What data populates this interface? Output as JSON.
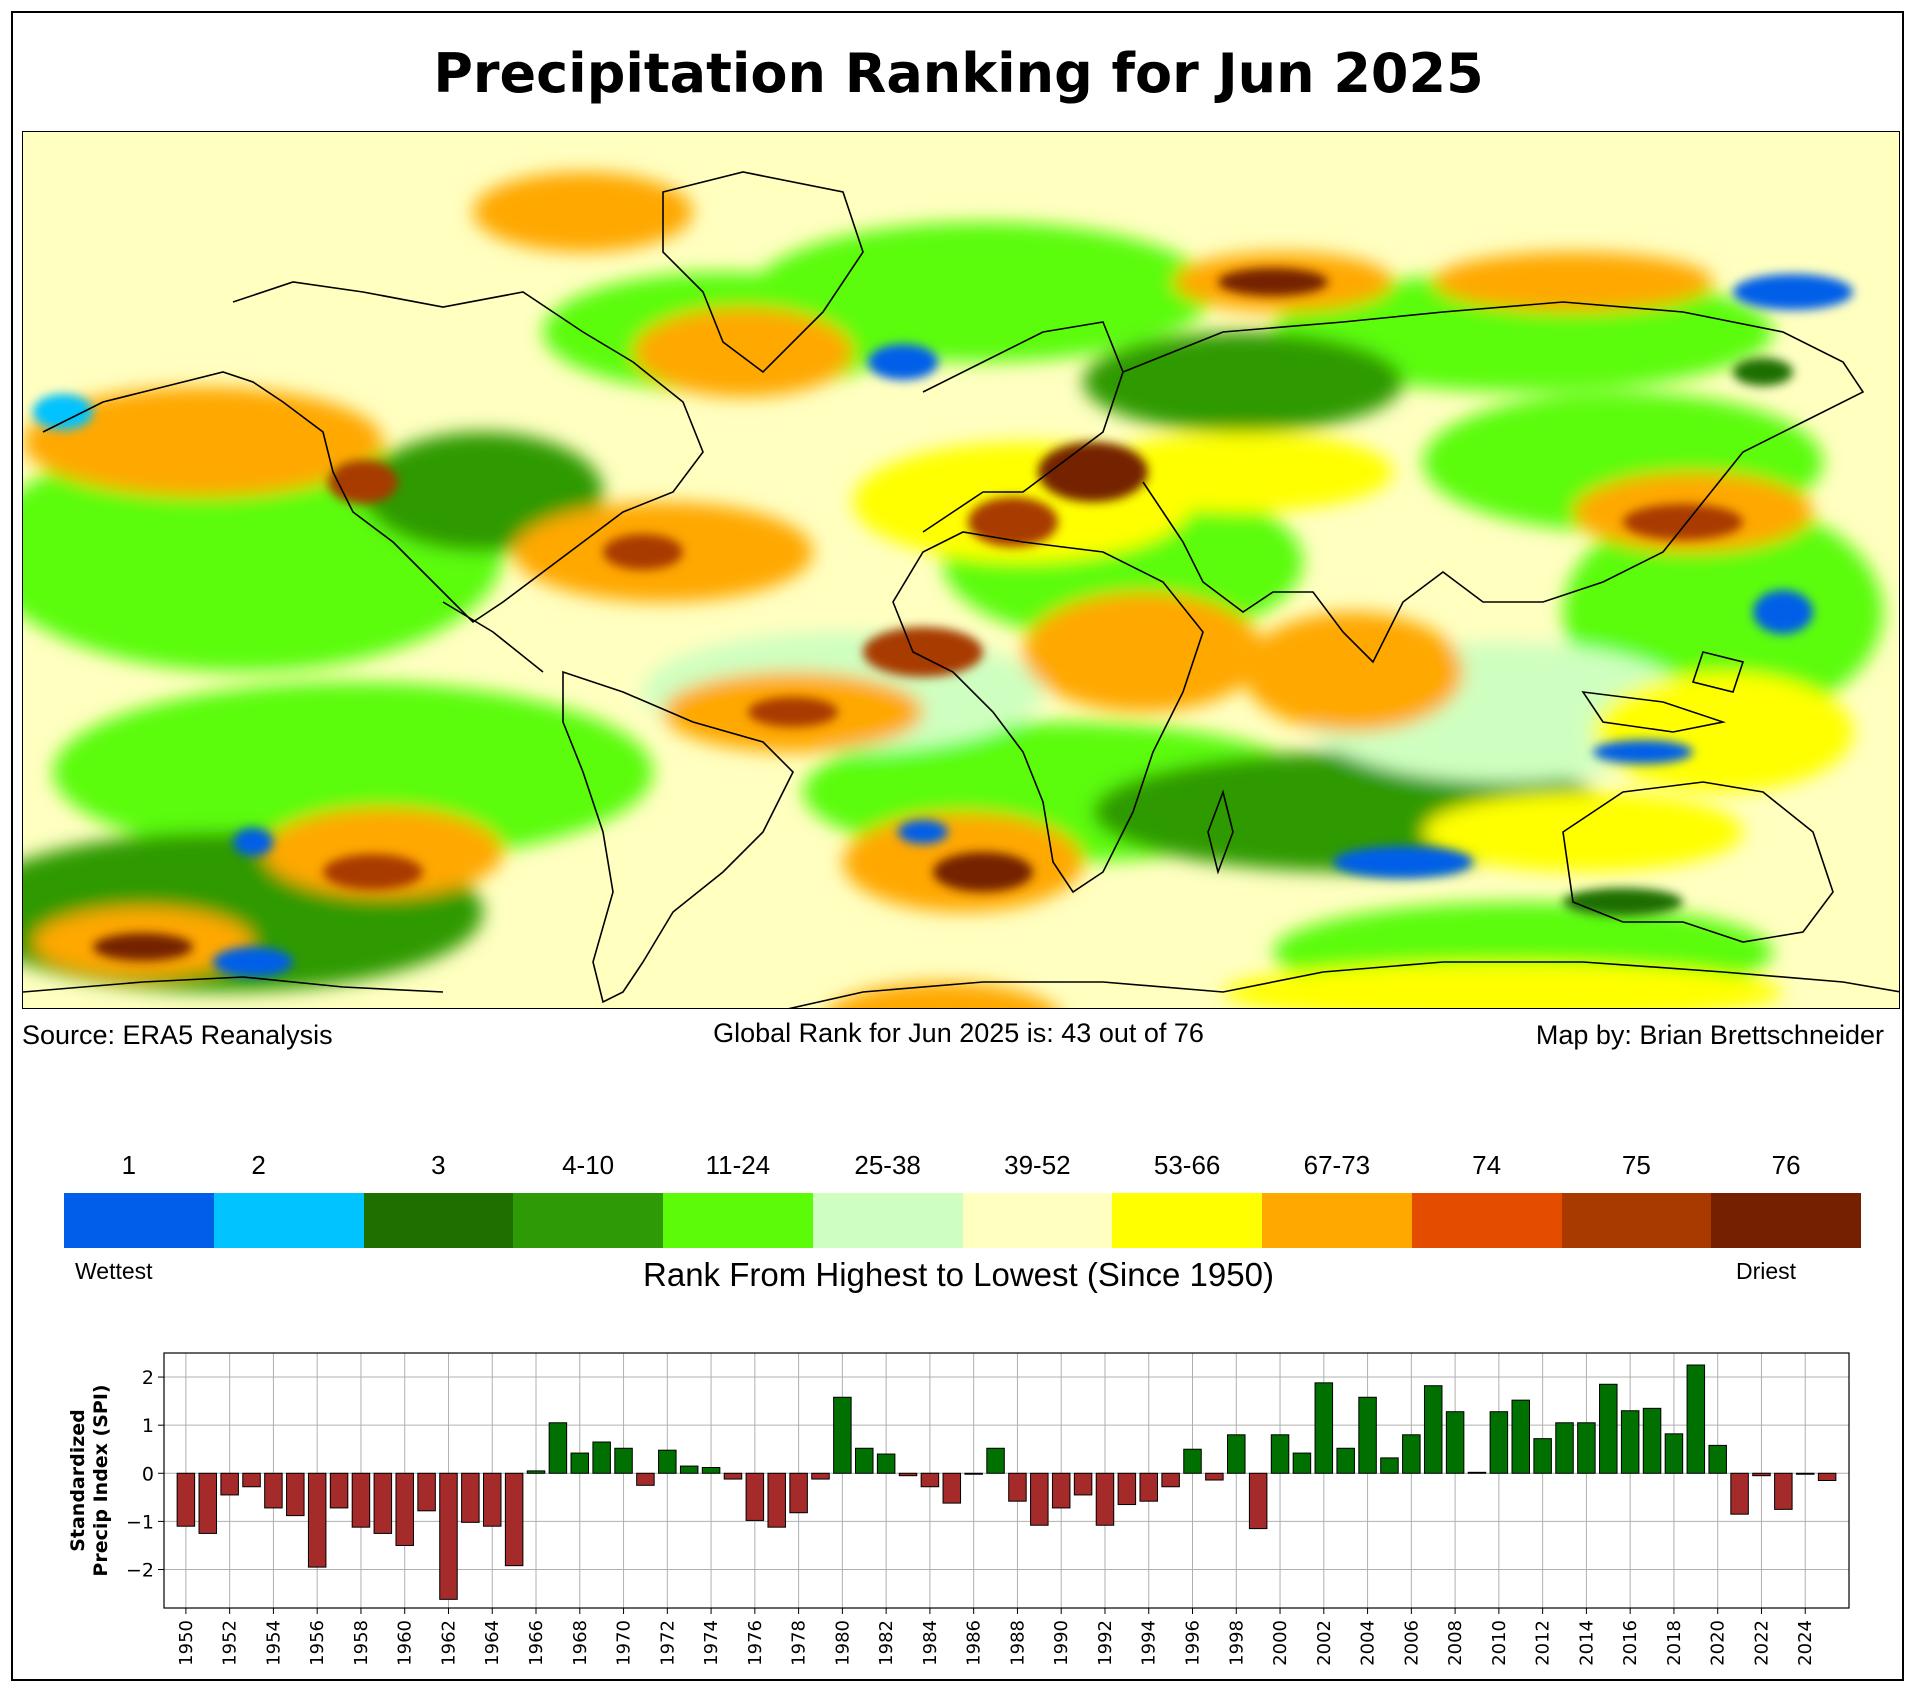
{
  "title": "Precipitation Ranking for Jun 2025",
  "map": {
    "description_tag": "global-precip-rank-map"
  },
  "captions": {
    "source": "Source: ERA5 Reanalysis",
    "global_rank": "Global Rank for Jun 2025 is: 43 out of 76",
    "credit": "Map by: Brian Brettschneider"
  },
  "legend": {
    "bins": [
      {
        "label": "1",
        "color": "#005ee8"
      },
      {
        "label": "2",
        "color": "#00c3ff"
      },
      {
        "label": "3",
        "color": "#1f6e00"
      },
      {
        "label": "4-10",
        "color": "#2d9a06"
      },
      {
        "label": "11-24",
        "color": "#5cfc08"
      },
      {
        "label": "25-38",
        "color": "#cfffc0"
      },
      {
        "label": "39-52",
        "color": "#ffffc0"
      },
      {
        "label": "53-66",
        "color": "#ffff00"
      },
      {
        "label": "67-73",
        "color": "#ffa800"
      },
      {
        "label": "74",
        "color": "#e44c00"
      },
      {
        "label": "75",
        "color": "#a83a00"
      },
      {
        "label": "76",
        "color": "#752000"
      }
    ],
    "wettest": "Wettest",
    "driest": "Driest",
    "title": "Rank From Highest to Lowest (Since 1950)"
  },
  "chart_data": {
    "type": "bar",
    "ylabel_line1": "Standardized",
    "ylabel_line2": "Precip Index (SPI)",
    "ylim": [
      -2.8,
      2.5
    ],
    "yticks": [
      -2,
      -1,
      0,
      1,
      2
    ],
    "ytick_labels": [
      "−2",
      "−1",
      "0",
      "1",
      "2"
    ],
    "xlim": [
      1949,
      2026
    ],
    "xtick_years": [
      "1950",
      "1952",
      "1954",
      "1956",
      "1958",
      "1960",
      "1962",
      "1964",
      "1966",
      "1968",
      "1970",
      "1972",
      "1974",
      "1976",
      "1978",
      "1980",
      "1982",
      "1984",
      "1986",
      "1988",
      "1990",
      "1992",
      "1994",
      "1996",
      "1998",
      "2000",
      "2002",
      "2004",
      "2006",
      "2008",
      "2010",
      "2012",
      "2014",
      "2016",
      "2018",
      "2020",
      "2022",
      "2024"
    ],
    "positive_color": "#007000",
    "negative_color": "#a52a2a",
    "years": [
      1950,
      1951,
      1952,
      1953,
      1954,
      1955,
      1956,
      1957,
      1958,
      1959,
      1960,
      1961,
      1962,
      1963,
      1964,
      1965,
      1966,
      1967,
      1968,
      1969,
      1970,
      1971,
      1972,
      1973,
      1974,
      1975,
      1976,
      1977,
      1978,
      1979,
      1980,
      1981,
      1982,
      1983,
      1984,
      1985,
      1986,
      1987,
      1988,
      1989,
      1990,
      1991,
      1992,
      1993,
      1994,
      1995,
      1996,
      1997,
      1998,
      1999,
      2000,
      2001,
      2002,
      2003,
      2004,
      2005,
      2006,
      2007,
      2008,
      2009,
      2010,
      2011,
      2012,
      2013,
      2014,
      2015,
      2016,
      2017,
      2018,
      2019,
      2020,
      2021,
      2022,
      2023,
      2024,
      2025
    ],
    "values": [
      -1.1,
      -1.25,
      -0.45,
      -0.28,
      -0.72,
      -0.88,
      -1.95,
      -0.72,
      -1.12,
      -1.25,
      -1.5,
      -0.78,
      -2.62,
      -1.02,
      -1.1,
      -1.92,
      0.05,
      1.05,
      0.42,
      0.65,
      0.52,
      -0.25,
      0.48,
      0.15,
      0.12,
      -0.12,
      -0.98,
      -1.12,
      -0.82,
      -0.12,
      1.58,
      0.52,
      0.4,
      -0.05,
      -0.28,
      -0.62,
      -0.02,
      0.52,
      -0.58,
      -1.08,
      -0.72,
      -0.45,
      -1.08,
      -0.65,
      -0.58,
      -0.28,
      0.5,
      -0.14,
      0.8,
      -1.15,
      0.8,
      0.42,
      1.88,
      0.52,
      1.58,
      0.32,
      0.8,
      1.82,
      1.28,
      0.02,
      1.28,
      1.52,
      0.72,
      1.05,
      1.05,
      1.85,
      1.3,
      1.35,
      0.82,
      2.25,
      0.58,
      -0.85,
      -0.05,
      -0.75,
      -0.02,
      -0.15
    ]
  }
}
